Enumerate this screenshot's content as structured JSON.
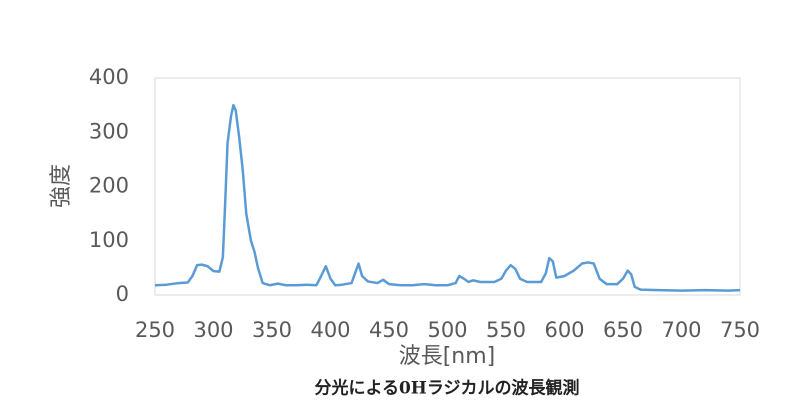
{
  "chart_data": {
    "type": "line",
    "title": "分光による0Hラジカルの波長観測",
    "x_label": "波長[nm]",
    "y_label": "強度",
    "xlim": [
      250,
      750
    ],
    "xticks": [
      250,
      300,
      350,
      400,
      450,
      500,
      550,
      600,
      650,
      700,
      750
    ],
    "ylim": [
      0,
      400
    ],
    "yticks": [
      0,
      100,
      200,
      300,
      400
    ],
    "series": [
      {
        "color": "#5b9bd5",
        "x": [
          250,
          260,
          270,
          278,
          282,
          286,
          290,
          295,
          300,
          305,
          308,
          310,
          312,
          315,
          317,
          319,
          322,
          325,
          328,
          332,
          335,
          338,
          342,
          348,
          355,
          362,
          370,
          380,
          388,
          392,
          396,
          400,
          404,
          410,
          418,
          421,
          424,
          427,
          432,
          440,
          445,
          450,
          460,
          470,
          480,
          490,
          500,
          507,
          510,
          514,
          518,
          522,
          528,
          540,
          546,
          550,
          554,
          558,
          562,
          568,
          580,
          584,
          587,
          590,
          593,
          600,
          608,
          615,
          620,
          625,
          630,
          636,
          645,
          650,
          654,
          657,
          660,
          665,
          680,
          700,
          720,
          740,
          750
        ],
        "values": [
          18,
          19,
          22,
          23,
          35,
          55,
          56,
          53,
          44,
          43,
          70,
          170,
          280,
          330,
          350,
          340,
          290,
          230,
          150,
          100,
          80,
          50,
          22,
          18,
          21,
          18,
          18,
          19,
          18,
          35,
          53,
          30,
          18,
          19,
          22,
          40,
          58,
          35,
          25,
          22,
          28,
          20,
          18,
          18,
          20,
          18,
          18,
          22,
          35,
          30,
          24,
          27,
          24,
          24,
          30,
          45,
          55,
          48,
          30,
          24,
          24,
          40,
          68,
          62,
          32,
          35,
          45,
          58,
          60,
          58,
          30,
          20,
          20,
          30,
          45,
          38,
          15,
          10,
          9,
          8,
          9,
          8,
          9
        ]
      }
    ]
  }
}
